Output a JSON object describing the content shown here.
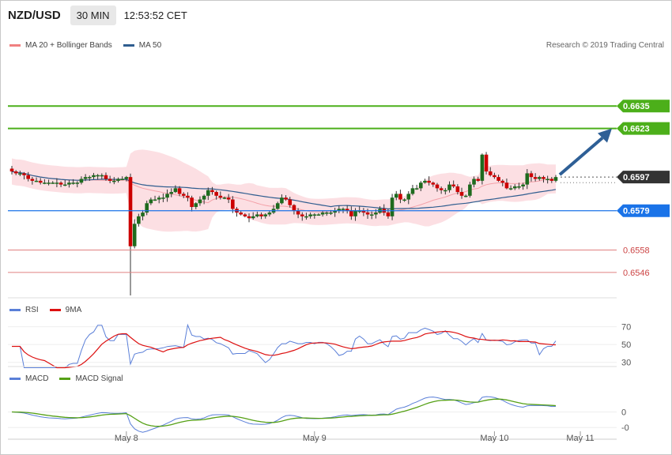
{
  "header": {
    "symbol": "NZD/USD",
    "timeframe": "30 MIN",
    "time": "12:53:52 CET"
  },
  "legend_main": {
    "bb": "MA 20 + Bollinger Bands",
    "ma50": "MA 50",
    "bb_color": "#f08080",
    "ma50_color": "#2f5d8f"
  },
  "research": "Research © 2019 Trading Central",
  "legend_rsi": {
    "rsi": "RSI",
    "ma": "9MA"
  },
  "legend_macd": {
    "macd": "MACD",
    "signal": "MACD Signal"
  },
  "colors": {
    "up": "#1e6b1e",
    "down": "#cc0000",
    "green_level": "#4caf1a",
    "blue_level": "#1a73e8",
    "red_level": "#e08080",
    "rsi_line": "#5a7fd8",
    "rsi_ma": "#dd1111",
    "macd_line": "#5a7fd8",
    "macd_signal": "#55a015",
    "arrow": "#2e5f96",
    "last_price": "#333333"
  },
  "chart_data": [
    {
      "type": "candlestick",
      "title": "NZD/USD",
      "ylim": [
        6.532,
        6.6655
      ],
      "ylim_scale": 0.1,
      "levels": [
        {
          "value": "0.6635",
          "y": 0.6635,
          "kind": "resistance"
        },
        {
          "value": "0.6623",
          "y": 0.6623,
          "kind": "resistance"
        },
        {
          "value": "0.6597",
          "y": 0.6597,
          "kind": "last"
        },
        {
          "value": "0.6579",
          "y": 0.6579,
          "kind": "pivot"
        },
        {
          "value": "0.6558",
          "y": 0.6558,
          "kind": "support"
        },
        {
          "value": "0.6546",
          "y": 0.6546,
          "kind": "support"
        }
      ],
      "x_labels": [
        {
          "label": "May 8",
          "bar": 28
        },
        {
          "label": "May 9",
          "bar": 74
        },
        {
          "label": "May 10",
          "bar": 118
        },
        {
          "label": "May 11",
          "bar": 139
        }
      ],
      "closes": [
        0.66,
        0.6599,
        0.6599,
        0.6598,
        0.6596,
        0.6595,
        0.6595,
        0.6594,
        0.6594,
        0.6594,
        0.6594,
        0.6594,
        0.6593,
        0.6593,
        0.6594,
        0.6594,
        0.6594,
        0.6596,
        0.6597,
        0.6597,
        0.6598,
        0.6598,
        0.6598,
        0.6596,
        0.6595,
        0.6595,
        0.6596,
        0.6596,
        0.6597,
        0.656,
        0.6572,
        0.6576,
        0.6578,
        0.6583,
        0.6585,
        0.6585,
        0.6586,
        0.6586,
        0.6588,
        0.6589,
        0.6591,
        0.6588,
        0.6587,
        0.6586,
        0.6581,
        0.6583,
        0.6585,
        0.6587,
        0.659,
        0.6589,
        0.6587,
        0.6586,
        0.6586,
        0.6585,
        0.658,
        0.6578,
        0.6577,
        0.6576,
        0.6575,
        0.6576,
        0.6577,
        0.6576,
        0.6577,
        0.6578,
        0.658,
        0.6583,
        0.6586,
        0.6585,
        0.6582,
        0.6579,
        0.6577,
        0.6576,
        0.6576,
        0.6577,
        0.6577,
        0.6577,
        0.6578,
        0.6578,
        0.6578,
        0.6579,
        0.658,
        0.658,
        0.6579,
        0.6576,
        0.6579,
        0.6579,
        0.6578,
        0.6577,
        0.6577,
        0.6578,
        0.658,
        0.6578,
        0.6576,
        0.6586,
        0.6588,
        0.6585,
        0.6585,
        0.6588,
        0.6591,
        0.6591,
        0.6594,
        0.6595,
        0.6594,
        0.6593,
        0.6591,
        0.659,
        0.659,
        0.6593,
        0.6592,
        0.6589,
        0.6587,
        0.6587,
        0.6593,
        0.6596,
        0.6595,
        0.6609,
        0.66,
        0.6598,
        0.6597,
        0.6595,
        0.6594,
        0.6591,
        0.6591,
        0.6592,
        0.6592,
        0.6593,
        0.6599,
        0.6597,
        0.6596,
        0.6597,
        0.6596,
        0.6596,
        0.6595,
        0.6597
      ],
      "opens": "previous close",
      "overlays": [
        "MA 20 + Bollinger Bands",
        "MA 50"
      ],
      "projection": {
        "from": "last",
        "to": 0.6623
      }
    },
    {
      "type": "line",
      "title": "RSI",
      "series": [
        {
          "name": "RSI"
        },
        {
          "name": "9MA"
        }
      ],
      "yticks": [
        30,
        50,
        70
      ],
      "ylim": [
        20,
        75
      ]
    },
    {
      "type": "line",
      "title": "MACD",
      "series": [
        {
          "name": "MACD"
        },
        {
          "name": "MACD Signal"
        }
      ],
      "yticks": [
        {
          "label": "0",
          "value": 0
        },
        {
          "label": "-0",
          "value": -0.0004
        }
      ],
      "ylim": [
        -0.0007,
        0.0006
      ]
    }
  ]
}
